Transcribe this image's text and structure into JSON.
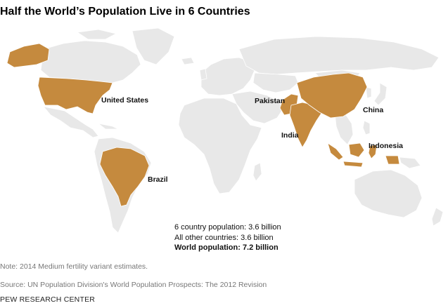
{
  "title": "Half the World’s Population Live in 6 Countries",
  "colors": {
    "highlight": "#c58a3e",
    "land": "#e8e8e8",
    "border": "#ffffff"
  },
  "labels": {
    "united_states": "United States",
    "brazil": "Brazil",
    "pakistan": "Pakistan",
    "india": "India",
    "china": "China",
    "indonesia": "Indonesia"
  },
  "stats": {
    "six_country": "6 country population: 3.6 billion",
    "other": "All other countries: 3.6 billion",
    "world": "World population: 7.2 billion"
  },
  "note": "Note: 2014 Medium fertility variant estimates.",
  "source": "Source: UN Population Division's World Population Prospects: The 2012 Revision",
  "brand": "PEW RESEARCH CENTER"
}
